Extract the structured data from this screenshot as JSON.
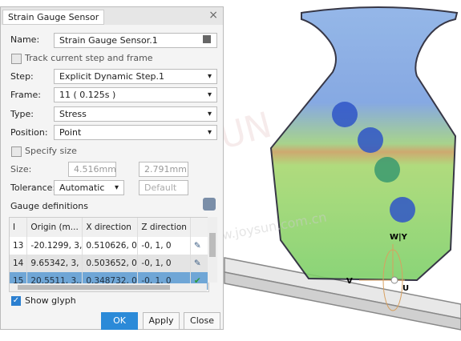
{
  "dialog": {
    "title": "Strain Gauge Sensor",
    "close": "×",
    "name": {
      "label": "Name:",
      "value": "Strain Gauge Sensor.1"
    },
    "track": "Track current step and frame",
    "step": {
      "label": "Step:",
      "value": "Explicit Dynamic Step.1"
    },
    "frame": {
      "label": "Frame:",
      "value": "11 ( 0.125s )"
    },
    "type": {
      "label": "Type:",
      "value": "Stress"
    },
    "position": {
      "label": "Position:",
      "value": "Point"
    },
    "specify_size": "Specify size",
    "size": {
      "label": "Size:",
      "values": [
        "4.516mm",
        "2.791mm"
      ]
    },
    "tolerance": {
      "label": "Tolerance:",
      "value": "Automatic",
      "default": "Default"
    },
    "gauge_definitions": "Gauge definitions",
    "table": {
      "headers": [
        "I",
        "Origin (m...",
        "X direction",
        "Z direction"
      ],
      "rows": [
        [
          "13",
          "-20.1299, 3,...",
          "0.510626, 0,...",
          "-0, 1, 0"
        ],
        [
          "14",
          "9.65342, 3, -...",
          "0.503652, 0,...",
          "-0, 1, 0"
        ],
        [
          "15",
          "20.5511, 3,...",
          "0.348732, 0...",
          "-0, 1, 0"
        ]
      ]
    },
    "show_glyph": "Show glyph",
    "buttons": [
      "OK",
      "Apply",
      "Close"
    ]
  },
  "viewport": {
    "axes": [
      "W|Y",
      "V",
      "U"
    ],
    "watermark": [
      "JOYSUN",
      "www.joysun.com.cn"
    ]
  }
}
